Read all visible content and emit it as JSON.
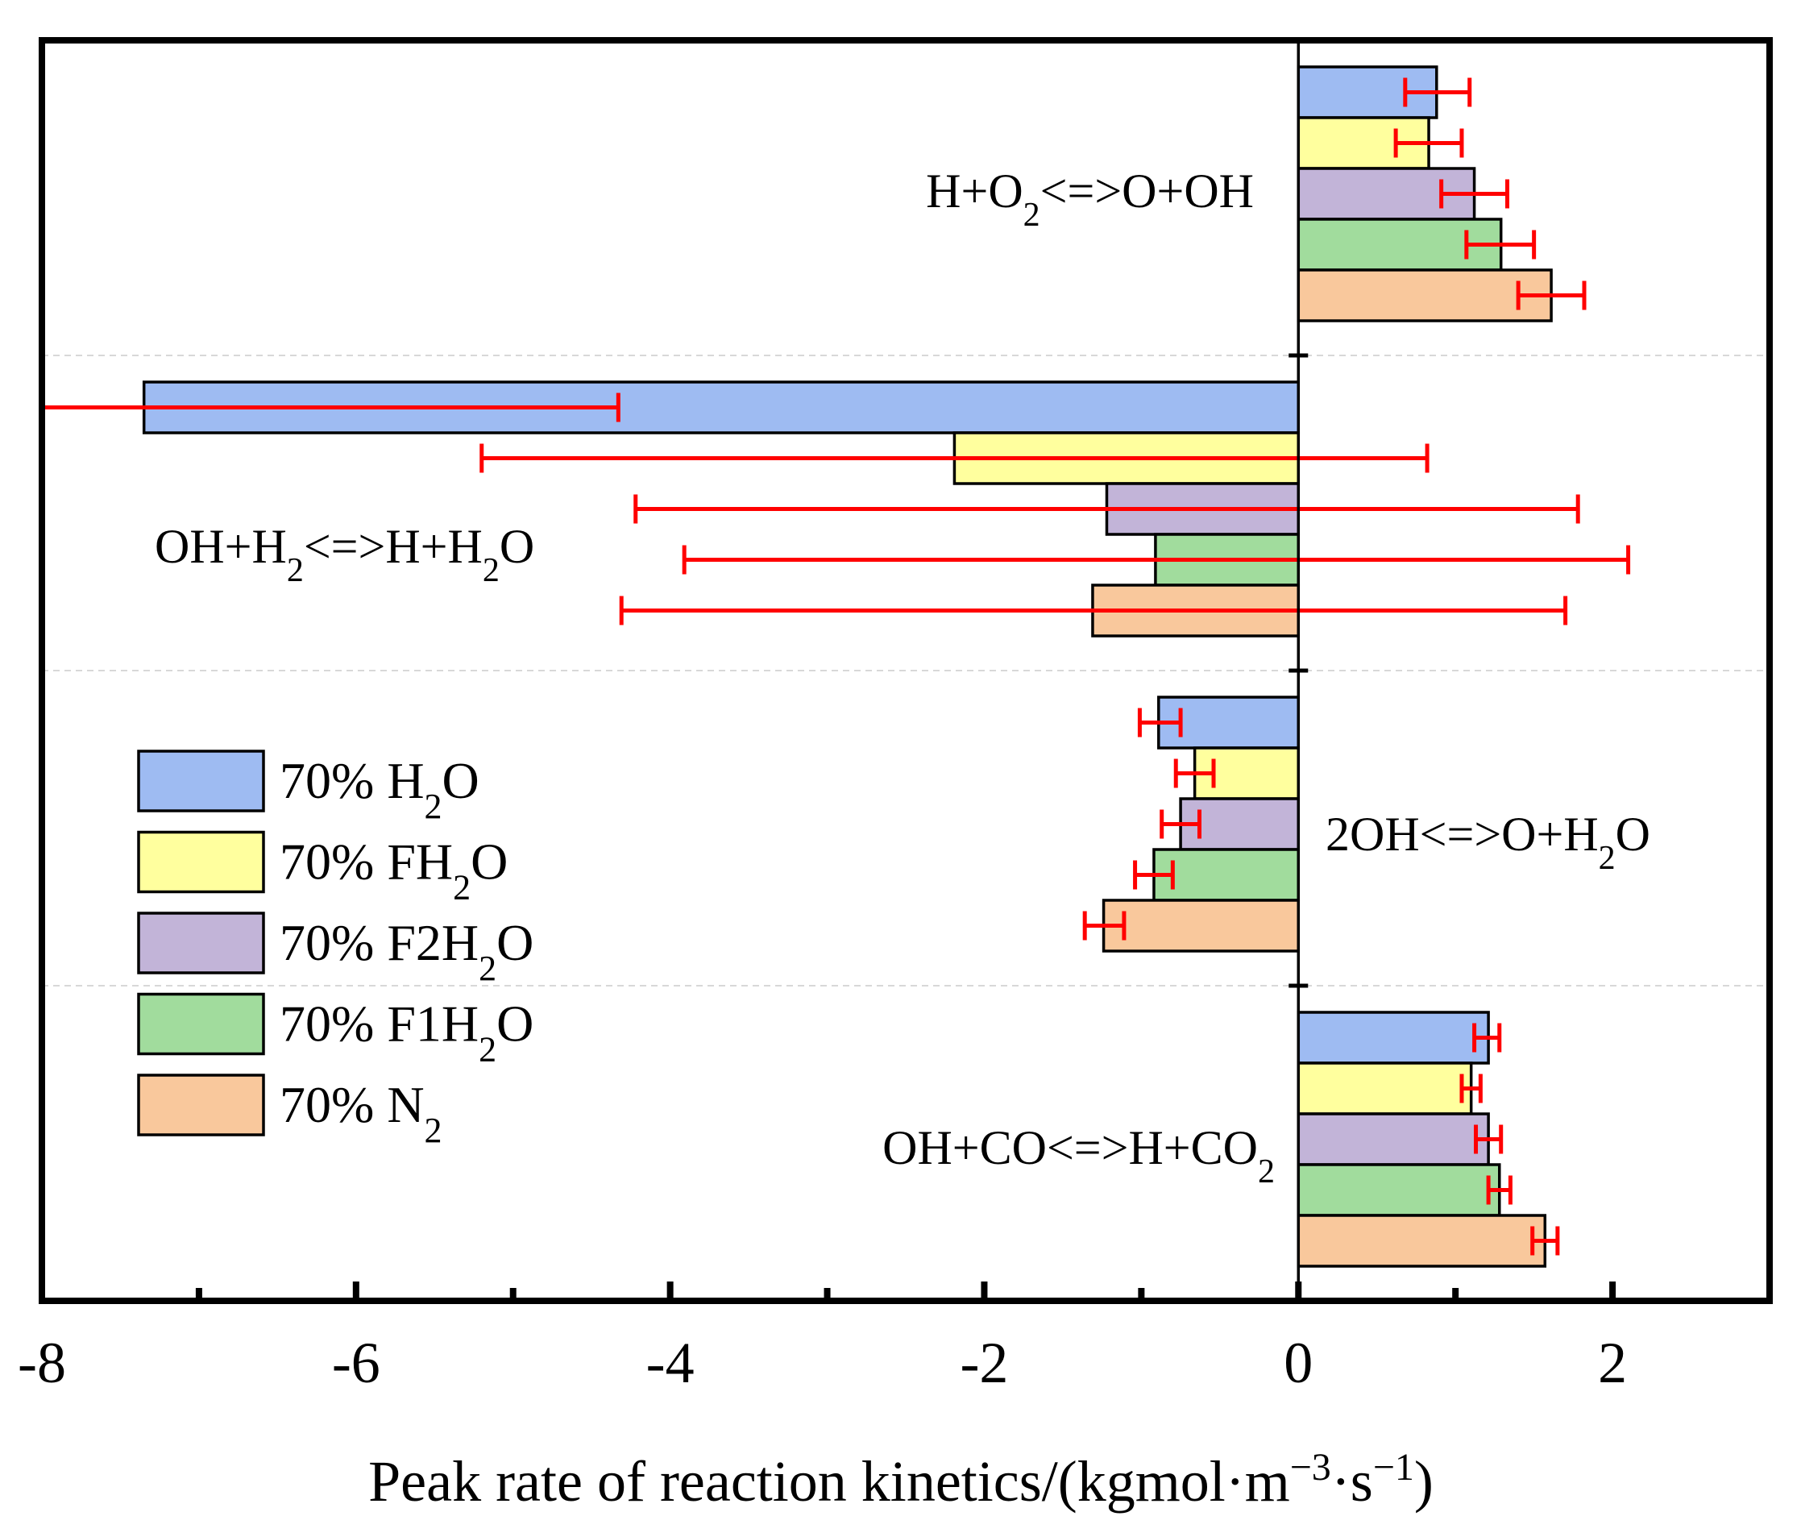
{
  "chart_data": {
    "type": "bar",
    "orientation": "horizontal",
    "title": "",
    "xlabel": "Peak rate of reaction kinetics/(kgmol·m⁻³·s⁻¹)",
    "xlabel_parts": [
      "Peak rate of reaction kinetics/(kgmol·m",
      "−3",
      "·s",
      "−1",
      ")"
    ],
    "ylabel": "",
    "xlim": [
      -8,
      3
    ],
    "xticks": [
      -8,
      -6,
      -4,
      -2,
      0,
      2
    ],
    "xtick_labels": [
      "-8",
      "-6",
      "-4",
      "-2",
      "0",
      "2"
    ],
    "grid": "horizontal dashed separators between reaction groups",
    "legend_position": "left",
    "categories": [
      {
        "label_parts": [
          [
            "H+O",
            false
          ],
          [
            "2",
            true
          ],
          [
            "<=>O+OH",
            false
          ]
        ]
      },
      {
        "label_parts": [
          [
            "OH+H",
            false
          ],
          [
            "2",
            true
          ],
          [
            "<=>H+H",
            false
          ],
          [
            "2",
            true
          ],
          [
            "O",
            false
          ]
        ]
      },
      {
        "label_parts": [
          [
            "2OH<=>O+H",
            false
          ],
          [
            "2",
            true
          ],
          [
            "O",
            false
          ]
        ]
      },
      {
        "label_parts": [
          [
            "OH+CO<=>H+CO",
            false
          ],
          [
            "2",
            true
          ]
        ]
      }
    ],
    "series": [
      {
        "name": "70% H2O",
        "legend_parts": [
          [
            "70% H",
            false
          ],
          [
            "2",
            true
          ],
          [
            "O",
            false
          ]
        ],
        "color": "#9ebbf2",
        "values": [
          0.88,
          -7.35,
          -0.89,
          1.21
        ],
        "error_low": [
          0.68,
          -8.2,
          -1.01,
          1.12
        ],
        "error_high": [
          1.09,
          -4.33,
          -0.75,
          1.28
        ]
      },
      {
        "name": "70% FH2O",
        "legend_parts": [
          [
            "70% FH",
            false
          ],
          [
            "2",
            true
          ],
          [
            "O",
            false
          ]
        ],
        "color": "#ffff9e",
        "values": [
          0.83,
          -2.19,
          -0.66,
          1.1
        ],
        "error_low": [
          0.62,
          -5.2,
          -0.78,
          1.04
        ],
        "error_high": [
          1.04,
          0.82,
          -0.54,
          1.16
        ]
      },
      {
        "name": "70% F2H2O",
        "legend_parts": [
          [
            "70% F2H",
            false
          ],
          [
            "2",
            true
          ],
          [
            "O",
            false
          ]
        ],
        "color": "#c2b4d8",
        "values": [
          1.12,
          -1.22,
          -0.75,
          1.21
        ],
        "error_low": [
          0.91,
          -4.22,
          -0.87,
          1.13
        ],
        "error_high": [
          1.33,
          1.78,
          -0.63,
          1.29
        ]
      },
      {
        "name": "70% F1H2O",
        "legend_parts": [
          [
            "70% F1H",
            false
          ],
          [
            "2",
            true
          ],
          [
            "O",
            false
          ]
        ],
        "color": "#a1dc9d",
        "values": [
          1.29,
          -0.91,
          -0.92,
          1.28
        ],
        "error_low": [
          1.07,
          -3.91,
          -1.04,
          1.21
        ],
        "error_high": [
          1.5,
          2.1,
          -0.8,
          1.35
        ]
      },
      {
        "name": "70% N2",
        "legend_parts": [
          [
            "70% N",
            false
          ],
          [
            "2",
            true
          ]
        ],
        "color": "#f9c89c",
        "values": [
          1.61,
          -1.31,
          -1.24,
          1.57
        ],
        "error_low": [
          1.4,
          -4.31,
          -1.36,
          1.49
        ],
        "error_high": [
          1.82,
          1.7,
          -1.11,
          1.65
        ]
      }
    ],
    "error_bar_color": "#ff0000"
  }
}
